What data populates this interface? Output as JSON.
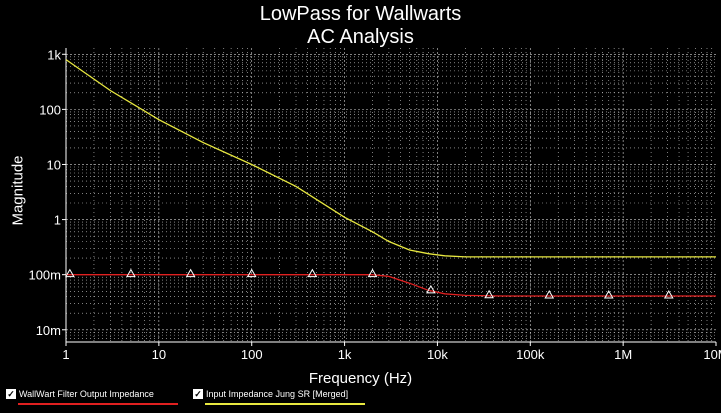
{
  "chart_data": {
    "type": "line",
    "title": "LowPass for Wallwarts",
    "subtitle": "AC Analysis",
    "xlabel": "Frequency (Hz)",
    "ylabel": "Magnitude",
    "x_scale": "log",
    "y_scale": "log",
    "xlim": [
      1,
      10000000
    ],
    "ylim": [
      0.006,
      1300
    ],
    "x_ticks": [
      {
        "value": 1,
        "label": "1"
      },
      {
        "value": 10,
        "label": "10"
      },
      {
        "value": 100,
        "label": "100"
      },
      {
        "value": 1000,
        "label": "1k"
      },
      {
        "value": 10000,
        "label": "10k"
      },
      {
        "value": 100000,
        "label": "100k"
      },
      {
        "value": 1000000,
        "label": "1M"
      },
      {
        "value": 10000000,
        "label": "10M"
      }
    ],
    "y_ticks": [
      {
        "value": 1000,
        "label": "1k"
      },
      {
        "value": 100,
        "label": "100"
      },
      {
        "value": 10,
        "label": "10"
      },
      {
        "value": 1,
        "label": "1"
      },
      {
        "value": 0.1,
        "label": "100m"
      },
      {
        "value": 0.01,
        "label": "10m"
      }
    ],
    "grid": true,
    "legend_position": "bottom-left",
    "series": [
      {
        "name": "WallWart Filter Output Impedance",
        "color": "#e02020",
        "marker": "triangle",
        "marker_x": [
          1.1,
          5,
          22,
          100,
          450,
          2000,
          8500,
          36000,
          160000,
          700000,
          3100000
        ],
        "x": [
          1,
          10,
          100,
          1000,
          2000,
          3000,
          5000,
          8000,
          12000,
          20000,
          50000,
          100000,
          1000000,
          10000000
        ],
        "y": [
          0.1,
          0.1,
          0.1,
          0.1,
          0.1,
          0.093,
          0.07,
          0.052,
          0.045,
          0.042,
          0.041,
          0.041,
          0.041,
          0.041
        ]
      },
      {
        "name": "Input Impedance Jung SR [Merged]",
        "color": "#e8e840",
        "marker": "none",
        "x": [
          1,
          3,
          10,
          30,
          100,
          300,
          1000,
          2000,
          3000,
          5000,
          8000,
          12000,
          20000,
          50000,
          100000,
          1000000,
          10000000
        ],
        "y": [
          800,
          220,
          65,
          25,
          10,
          4,
          1.1,
          0.6,
          0.4,
          0.28,
          0.24,
          0.22,
          0.21,
          0.21,
          0.21,
          0.21,
          0.21
        ]
      }
    ]
  }
}
